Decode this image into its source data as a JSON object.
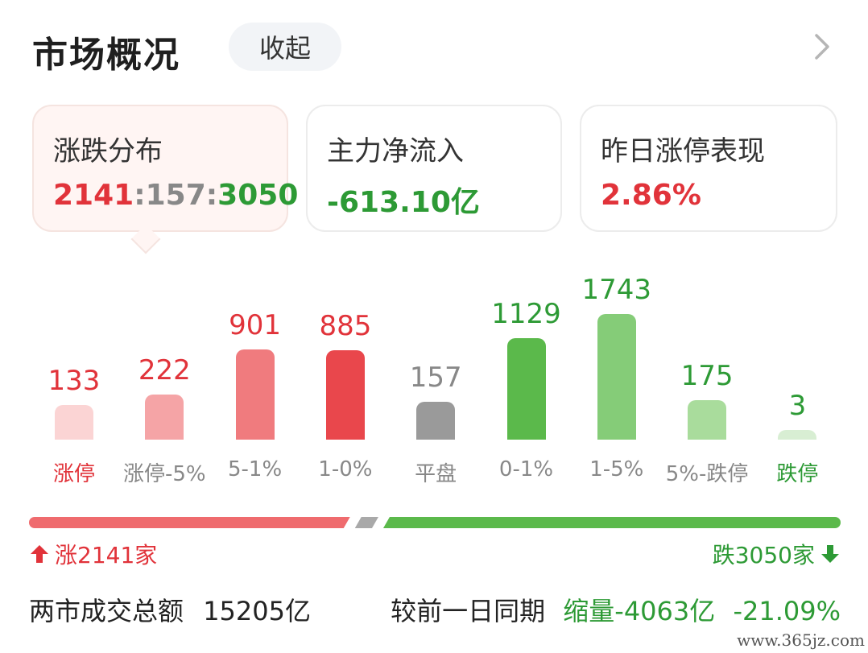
{
  "header": {
    "title": "市场概况",
    "collapse_label": "收起"
  },
  "cards": {
    "distribution": {
      "label": "涨跌分布",
      "up": "2141",
      "flat": "157",
      "down": "3050",
      "sep": ":"
    },
    "net_inflow": {
      "label": "主力净流入",
      "value": "-613.10亿"
    },
    "yesterday_limit": {
      "label": "昨日涨停表现",
      "value": "2.86%"
    }
  },
  "chart_data": {
    "type": "bar",
    "categories": [
      "涨停",
      "涨停-5%",
      "5-1%",
      "1-0%",
      "平盘",
      "0-1%",
      "1-5%",
      "5%-跌停",
      "跌停"
    ],
    "values": [
      133,
      222,
      901,
      885,
      157,
      1129,
      1743,
      175,
      3
    ],
    "colors": [
      "#fbd4d4",
      "#f5a4a6",
      "#f07b7e",
      "#e9474c",
      "#9a9a9a",
      "#5bb94b",
      "#85cc78",
      "#a9dc9c",
      "#d8eed3"
    ],
    "label_colors": [
      "#e1333a",
      "#e1333a",
      "#e1333a",
      "#e1333a",
      "#888888",
      "#2d9a35",
      "#2d9a35",
      "#2d9a35",
      "#2d9a35"
    ],
    "category_colors": [
      "#e1333a",
      "#888888",
      "#888888",
      "#888888",
      "#888888",
      "#888888",
      "#888888",
      "#888888",
      "#2d9a35"
    ]
  },
  "summary": {
    "up_label": "涨2141家",
    "down_label": "跌3050家",
    "up_count": 2141,
    "flat_count": 157,
    "down_count": 3050
  },
  "footer": {
    "turnover_label": "两市成交总额",
    "turnover_value": "15205亿",
    "compare_label": "较前一日同期",
    "change_amount": "缩量-4063亿",
    "change_pct": "-21.09%"
  },
  "watermark": "www.365jz.com"
}
